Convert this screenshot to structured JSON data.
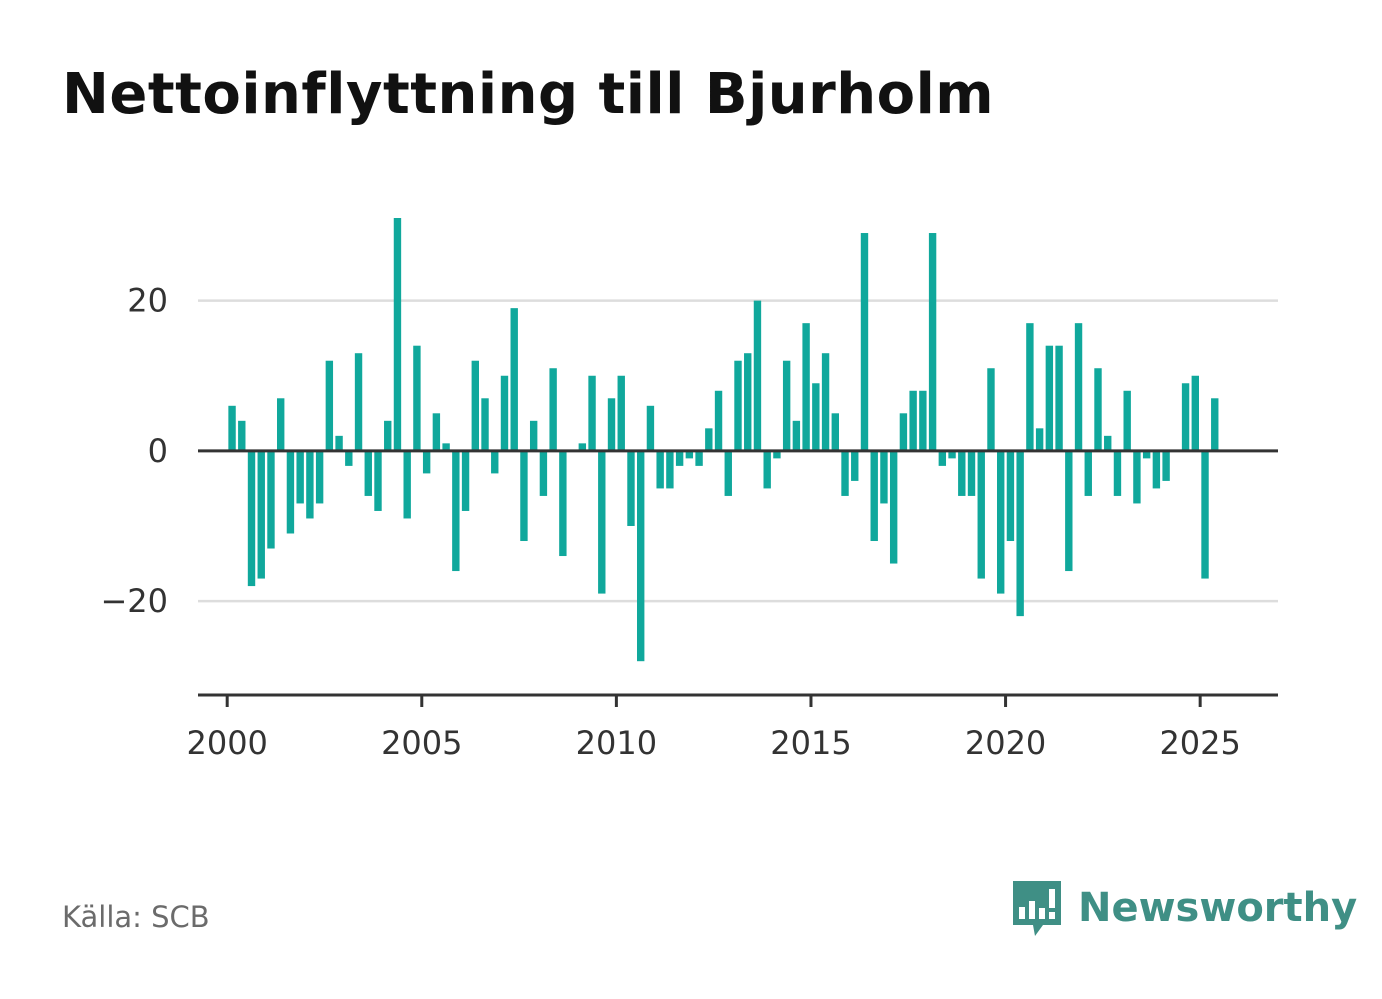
{
  "title": "Nettoinflyttning till Bjurholm",
  "source": "Källa: SCB",
  "brand": "Newsworthy",
  "colors": {
    "bar": "#10a89c",
    "axis": "#333333",
    "grid": "#dddddd",
    "brand": "#3f8f85"
  },
  "icons": {
    "brand_logo": "bar-chart-speech-bubble-icon"
  },
  "chart_data": {
    "type": "bar",
    "xlabel": "",
    "ylabel": "",
    "xlim": [
      1999.25,
      2027.0
    ],
    "ylim": [
      -32.5,
      31
    ],
    "xticks": [
      2000,
      2005,
      2010,
      2015,
      2020,
      2025
    ],
    "yticks": [
      -20,
      0,
      20
    ],
    "ytick_labels": [
      "−20",
      "0",
      "20"
    ],
    "grid": "horizontal",
    "legend": "none",
    "bar_width": 0.19,
    "series": [
      {
        "x": [
          2000.125,
          2000.375,
          2000.625,
          2000.875,
          2001.125,
          2001.375,
          2001.625,
          2001.875,
          2002.125,
          2002.375,
          2002.625,
          2002.875,
          2003.125,
          2003.375,
          2003.625,
          2003.875,
          2004.125,
          2004.375,
          2004.625,
          2004.875,
          2005.125,
          2005.375,
          2005.625,
          2005.875,
          2006.125,
          2006.375,
          2006.625,
          2006.875,
          2007.125,
          2007.375,
          2007.625,
          2007.875,
          2008.125,
          2008.375,
          2008.625,
          2008.875,
          2009.125,
          2009.375,
          2009.625,
          2009.875,
          2010.125,
          2010.375,
          2010.625,
          2010.875,
          2011.125,
          2011.375,
          2011.625,
          2011.875,
          2012.125,
          2012.375,
          2012.625,
          2012.875,
          2013.125,
          2013.375,
          2013.625,
          2013.875,
          2014.125,
          2014.375,
          2014.625,
          2014.875,
          2015.125,
          2015.375,
          2015.625,
          2015.875,
          2016.125,
          2016.375,
          2016.625,
          2016.875,
          2017.125,
          2017.375,
          2017.625,
          2017.875,
          2018.125,
          2018.375,
          2018.625,
          2018.875,
          2019.125,
          2019.375,
          2019.625,
          2019.875,
          2020.125,
          2020.375,
          2020.625,
          2020.875,
          2021.125,
          2021.375,
          2021.625,
          2021.875,
          2022.125,
          2022.375,
          2022.625,
          2022.875,
          2023.125,
          2023.375,
          2023.625,
          2023.875,
          2024.125,
          2024.375,
          2024.625,
          2024.875,
          2025.125,
          2025.375
        ],
        "values": [
          6,
          4,
          -18,
          -17,
          -13,
          7,
          -11,
          -7,
          -9,
          -7,
          12,
          2,
          -2,
          13,
          -6,
          -8,
          4,
          31,
          -9,
          14,
          -3,
          5,
          1,
          -16,
          -8,
          12,
          7,
          -3,
          10,
          19,
          -12,
          4,
          -6,
          11,
          -14,
          0,
          1,
          10,
          -19,
          7,
          10,
          -10,
          -28,
          6,
          -5,
          -5,
          -2,
          -1,
          -2,
          3,
          8,
          -6,
          12,
          13,
          20,
          -5,
          -1,
          12,
          4,
          17,
          9,
          13,
          5,
          -6,
          -4,
          29,
          -12,
          -7,
          -15,
          5,
          8,
          8,
          29,
          -2,
          -1,
          -6,
          -6,
          -17,
          11,
          -19,
          -12,
          -22,
          17,
          3,
          14,
          14,
          -16,
          17,
          -6,
          11,
          2,
          -6,
          8,
          -7,
          -1,
          -5,
          -4,
          0,
          9,
          10,
          -17,
          7
        ]
      }
    ]
  }
}
